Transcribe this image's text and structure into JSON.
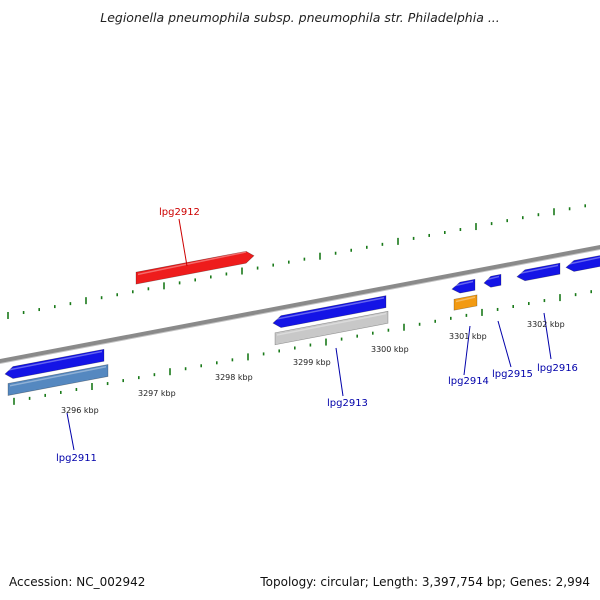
{
  "title": "Legionella pneumophila subsp. pneumophila str. Philadelphia ...",
  "footer": {
    "accession": "Accession: NC_002942",
    "summary": "Topology: circular; Length: 3,397,754 bp; Genes: 2,994"
  },
  "scale_labels": [
    {
      "text": "3296 kbp"
    },
    {
      "text": "3297 kbp"
    },
    {
      "text": "3298 kbp"
    },
    {
      "text": "3299 kbp"
    },
    {
      "text": "3300 kbp"
    },
    {
      "text": "3301 kbp"
    },
    {
      "text": "3302 kbp"
    }
  ],
  "genes": [
    {
      "name": "lpg2911",
      "color": "#0000aa"
    },
    {
      "name": "lpg2912",
      "color": "#cc0000"
    },
    {
      "name": "lpg2913",
      "color": "#0000aa"
    },
    {
      "name": "lpg2914",
      "color": "#0000aa"
    },
    {
      "name": "lpg2915",
      "color": "#0000aa"
    },
    {
      "name": "lpg2916",
      "color": "#0000aa"
    }
  ],
  "colors": {
    "backbone": "#8a8a8a",
    "tick": "#1a7a1a",
    "forward_cds": "#ee1c1c",
    "reverse_cds": "#1414e6",
    "reverse_rna": "#5588c0",
    "pseudo": "#c8c8c8",
    "other": "#f29a12"
  }
}
